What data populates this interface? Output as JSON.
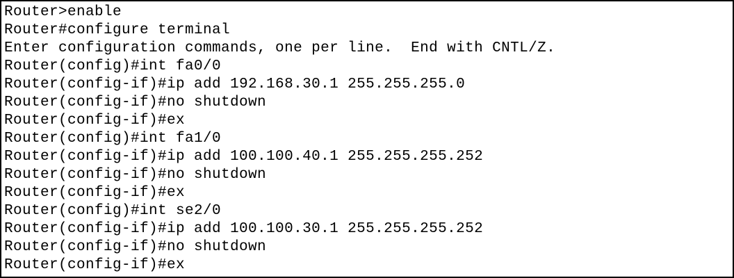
{
  "terminal": {
    "lines": [
      "Router>enable",
      "Router#configure terminal",
      "Enter configuration commands, one per line.  End with CNTL/Z.",
      "Router(config)#int fa0/0",
      "Router(config-if)#ip add 192.168.30.1 255.255.255.0",
      "Router(config-if)#no shutdown",
      "Router(config-if)#ex",
      "Router(config)#int fa1/0",
      "Router(config-if)#ip add 100.100.40.1 255.255.255.252",
      "Router(config-if)#no shutdown",
      "Router(config-if)#ex",
      "Router(config)#int se2/0",
      "Router(config-if)#ip add 100.100.30.1 255.255.255.252",
      "Router(config-if)#no shutdown",
      "Router(config-if)#ex"
    ]
  }
}
